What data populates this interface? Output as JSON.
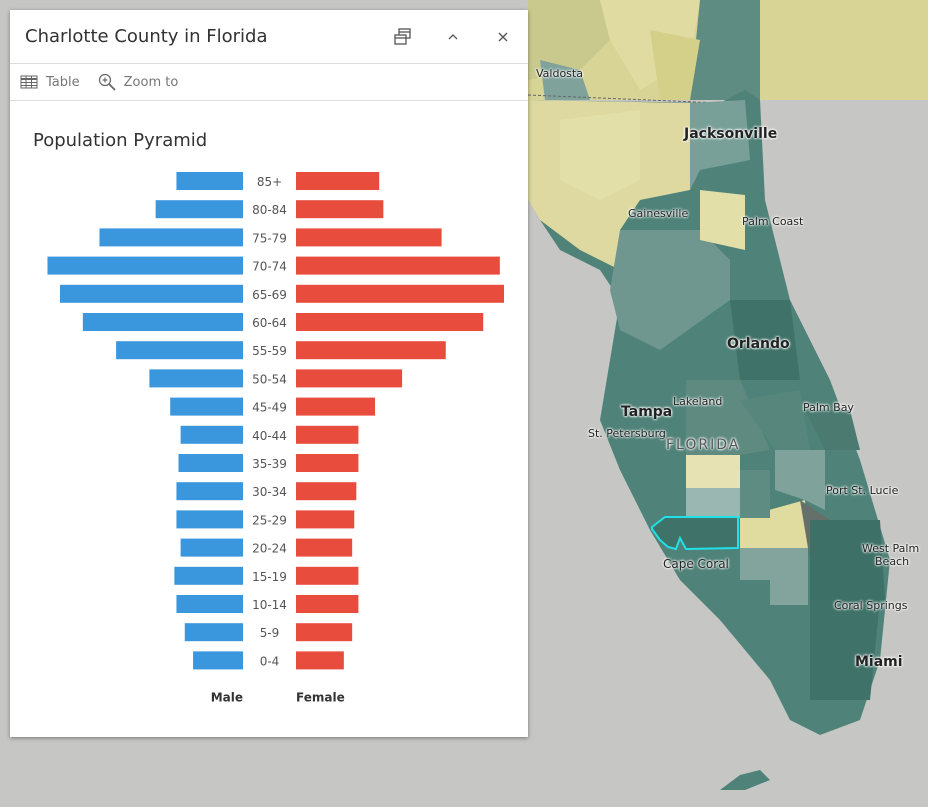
{
  "panel": {
    "title": "Charlotte County in Florida",
    "actions": {
      "dock": "dock-icon",
      "collapse": "chevron-up-icon",
      "close": "close-icon"
    },
    "toolbar": [
      {
        "label": "Table",
        "icon": "table-icon"
      },
      {
        "label": "Zoom to",
        "icon": "zoom-in-icon"
      }
    ]
  },
  "chart_data": {
    "type": "bar",
    "orientation": "horizontal-pyramid",
    "title": "Population Pyramid",
    "categories": [
      "85+",
      "80-84",
      "75-79",
      "70-74",
      "65-69",
      "60-64",
      "55-59",
      "50-54",
      "45-49",
      "40-44",
      "35-39",
      "30-34",
      "25-29",
      "20-24",
      "15-19",
      "10-14",
      "5-9",
      "0-4"
    ],
    "series": [
      {
        "name": "Male",
        "color": "#3a96dd",
        "values": [
          32,
          42,
          69,
          94,
          88,
          77,
          61,
          45,
          35,
          30,
          31,
          32,
          32,
          30,
          33,
          32,
          28,
          24
        ]
      },
      {
        "name": "Female",
        "color": "#e84c3d",
        "values": [
          40,
          42,
          70,
          98,
          100,
          90,
          72,
          51,
          38,
          30,
          30,
          29,
          28,
          27,
          30,
          30,
          27,
          23
        ]
      }
    ],
    "value_note": "relative bar lengths, no axis printed",
    "grid": false
  },
  "map": {
    "labels": [
      "Valdosta",
      "Jacksonville",
      "Gainesville",
      "Palm Coast",
      "Orlando",
      "Lakeland",
      "Tampa",
      "St. Petersburg",
      "FLORIDA",
      "Palm Bay",
      "Port St. Lucie",
      "Cape Coral",
      "West Palm",
      "Beach",
      "Coral Springs",
      "Miami"
    ],
    "selected_outline_color": "#22e0e8"
  }
}
